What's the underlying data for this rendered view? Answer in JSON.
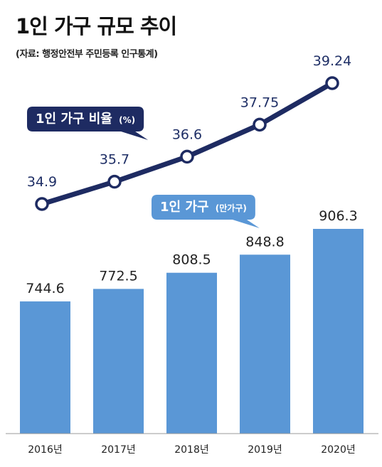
{
  "title": "1인 가구 규모 추이",
  "subtitle": "(자료: 행정안전부 주민등록 인구통계)",
  "colors": {
    "bar": "#5a97d6",
    "line": "#1e2b62",
    "label_dark": "#1e2b62",
    "label_light": "#5a97d6"
  },
  "chart_data": {
    "type": "bar+line",
    "categories": [
      "2016년",
      "2017년",
      "2018년",
      "2019년",
      "2020년"
    ],
    "series": [
      {
        "name": "1인 가구",
        "unit": "(만가구)",
        "type": "bar",
        "values": [
          744.6,
          772.5,
          808.5,
          848.8,
          906.3
        ]
      },
      {
        "name": "1인 가구 비율",
        "unit": "(%)",
        "type": "line",
        "values": [
          34.9,
          35.7,
          36.6,
          37.75,
          39.24
        ],
        "labels": [
          "34.9",
          "35.7",
          "36.6",
          "37.75",
          "39.24"
        ]
      }
    ],
    "bar_labels": [
      "744.6",
      "772.5",
      "808.5",
      "848.8",
      "906.3"
    ],
    "legend": [
      {
        "text": "1인 가구 비율",
        "unit": "(%)"
      },
      {
        "text": "1인 가구",
        "unit": "(만가구)"
      }
    ]
  }
}
